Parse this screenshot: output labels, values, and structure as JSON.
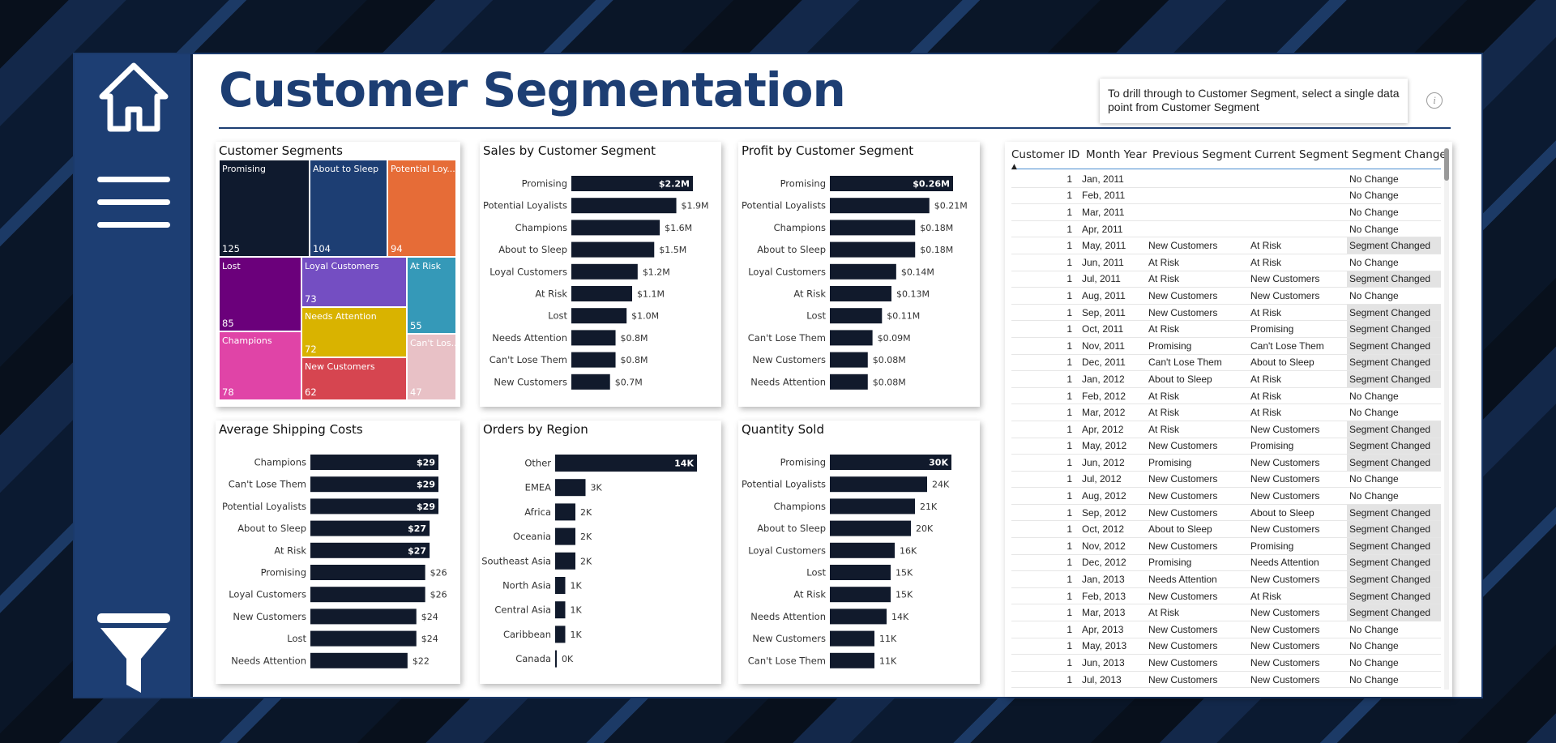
{
  "colors": {
    "sidebar": "#1d3e73",
    "title": "#1d3e73",
    "bar": "#111a2c",
    "tiles": {
      "Promising": "#0f1a2e",
      "About to Sleep": "#1d3e73",
      "Potential Loyalists": "#e66c37",
      "Lost": "#6b007b",
      "Loyal Customers": "#744ec2",
      "At Risk": "#3599b8",
      "Needs Attention": "#d9b300",
      "Champions": "#e044a7",
      "New Customers": "#d64550",
      "Can't Lose Them": "#e8c1c6"
    }
  },
  "sidebar": {
    "icons": [
      "home-icon",
      "menu-icon",
      "filter-icon"
    ]
  },
  "header": {
    "title": "Customer Segmentation",
    "tooltip": "To drill through to Customer Segment, select a single data point from Customer Segment",
    "info_icon": "i"
  },
  "treemap": {
    "title": "Customer Segments",
    "tiles": [
      {
        "label": "Promising",
        "value": "125"
      },
      {
        "label": "About to Sleep",
        "value": "104"
      },
      {
        "label": "Potential Loy...",
        "value": "94"
      },
      {
        "label": "Lost",
        "value": "85"
      },
      {
        "label": "Loyal Customers",
        "value": "73"
      },
      {
        "label": "At Risk",
        "value": "55"
      },
      {
        "label": "Needs Attention",
        "value": "72"
      },
      {
        "label": "Champions",
        "value": "78"
      },
      {
        "label": "New Customers",
        "value": "62"
      },
      {
        "label": "Can't Los...",
        "value": "47"
      }
    ]
  },
  "chart_data": [
    {
      "type": "bar",
      "id": "sales",
      "title": "Sales by Customer Segment",
      "categories": [
        "Promising",
        "Potential Loyalists",
        "Champions",
        "About to Sleep",
        "Loyal Customers",
        "At Risk",
        "Lost",
        "Needs Attention",
        "Can't Lose Them",
        "New Customers"
      ],
      "values": [
        2.2,
        1.9,
        1.6,
        1.5,
        1.2,
        1.1,
        1.0,
        0.8,
        0.8,
        0.7
      ],
      "labels": [
        "$2.2M",
        "$1.9M",
        "$1.6M",
        "$1.5M",
        "$1.2M",
        "$1.1M",
        "$1.0M",
        "$0.8M",
        "$0.8M",
        "$0.7M"
      ],
      "max": 2.2
    },
    {
      "type": "bar",
      "id": "profit",
      "title": "Profit by Customer Segment",
      "categories": [
        "Promising",
        "Potential Loyalists",
        "Champions",
        "About to Sleep",
        "Loyal Customers",
        "At Risk",
        "Lost",
        "Can't Lose Them",
        "New Customers",
        "Needs Attention"
      ],
      "values": [
        0.26,
        0.21,
        0.18,
        0.18,
        0.14,
        0.13,
        0.11,
        0.09,
        0.08,
        0.08
      ],
      "labels": [
        "$0.26M",
        "$0.21M",
        "$0.18M",
        "$0.18M",
        "$0.14M",
        "$0.13M",
        "$0.11M",
        "$0.09M",
        "$0.08M",
        "$0.08M"
      ],
      "max": 0.26
    },
    {
      "type": "bar",
      "id": "shipping",
      "title": "Average Shipping Costs",
      "categories": [
        "Champions",
        "Can't Lose Them",
        "Potential Loyalists",
        "About to Sleep",
        "At Risk",
        "Promising",
        "Loyal Customers",
        "New Customers",
        "Lost",
        "Needs Attention"
      ],
      "values": [
        29,
        29,
        29,
        27,
        27,
        26,
        26,
        24,
        24,
        22
      ],
      "labels": [
        "$29",
        "$29",
        "$29",
        "$27",
        "$27",
        "$26",
        "$26",
        "$24",
        "$24",
        "$22"
      ],
      "max": 29
    },
    {
      "type": "bar",
      "id": "orders",
      "title": "Orders by Region",
      "categories": [
        "Other",
        "EMEA",
        "Africa",
        "Oceania",
        "Southeast Asia",
        "North Asia",
        "Central Asia",
        "Caribbean",
        "Canada"
      ],
      "values": [
        14,
        3,
        2,
        2,
        2,
        1,
        1,
        1,
        0
      ],
      "labels": [
        "14K",
        "3K",
        "2K",
        "2K",
        "2K",
        "1K",
        "1K",
        "1K",
        "0K"
      ],
      "max": 14
    },
    {
      "type": "bar",
      "id": "quantity",
      "title": "Quantity Sold",
      "categories": [
        "Promising",
        "Potential Loyalists",
        "Champions",
        "About to Sleep",
        "Loyal Customers",
        "Lost",
        "At Risk",
        "Needs Attention",
        "New Customers",
        "Can't Lose Them"
      ],
      "values": [
        30,
        24,
        21,
        20,
        16,
        15,
        15,
        14,
        11,
        11
      ],
      "labels": [
        "30K",
        "24K",
        "21K",
        "20K",
        "16K",
        "15K",
        "15K",
        "14K",
        "11K",
        "11K"
      ],
      "max": 30
    }
  ],
  "table": {
    "columns": [
      "Customer ID",
      "Month Year",
      "Previous Segment",
      "Current Segment",
      "Segment Change"
    ],
    "rows": [
      [
        "1",
        "Jan, 2011",
        "",
        "",
        "No Change"
      ],
      [
        "1",
        "Feb, 2011",
        "",
        "",
        "No Change"
      ],
      [
        "1",
        "Mar, 2011",
        "",
        "",
        "No Change"
      ],
      [
        "1",
        "Apr, 2011",
        "",
        "",
        "No Change"
      ],
      [
        "1",
        "May, 2011",
        "New Customers",
        "At Risk",
        "Segment Changed"
      ],
      [
        "1",
        "Jun, 2011",
        "At Risk",
        "At Risk",
        "No Change"
      ],
      [
        "1",
        "Jul, 2011",
        "At Risk",
        "New Customers",
        "Segment Changed"
      ],
      [
        "1",
        "Aug, 2011",
        "New Customers",
        "New Customers",
        "No Change"
      ],
      [
        "1",
        "Sep, 2011",
        "New Customers",
        "At Risk",
        "Segment Changed"
      ],
      [
        "1",
        "Oct, 2011",
        "At Risk",
        "Promising",
        "Segment Changed"
      ],
      [
        "1",
        "Nov, 2011",
        "Promising",
        "Can't Lose Them",
        "Segment Changed"
      ],
      [
        "1",
        "Dec, 2011",
        "Can't Lose Them",
        "About to Sleep",
        "Segment Changed"
      ],
      [
        "1",
        "Jan, 2012",
        "About to Sleep",
        "At Risk",
        "Segment Changed"
      ],
      [
        "1",
        "Feb, 2012",
        "At Risk",
        "At Risk",
        "No Change"
      ],
      [
        "1",
        "Mar, 2012",
        "At Risk",
        "At Risk",
        "No Change"
      ],
      [
        "1",
        "Apr, 2012",
        "At Risk",
        "New Customers",
        "Segment Changed"
      ],
      [
        "1",
        "May, 2012",
        "New Customers",
        "Promising",
        "Segment Changed"
      ],
      [
        "1",
        "Jun, 2012",
        "Promising",
        "New Customers",
        "Segment Changed"
      ],
      [
        "1",
        "Jul, 2012",
        "New Customers",
        "New Customers",
        "No Change"
      ],
      [
        "1",
        "Aug, 2012",
        "New Customers",
        "New Customers",
        "No Change"
      ],
      [
        "1",
        "Sep, 2012",
        "New Customers",
        "About to Sleep",
        "Segment Changed"
      ],
      [
        "1",
        "Oct, 2012",
        "About to Sleep",
        "New Customers",
        "Segment Changed"
      ],
      [
        "1",
        "Nov, 2012",
        "New Customers",
        "Promising",
        "Segment Changed"
      ],
      [
        "1",
        "Dec, 2012",
        "Promising",
        "Needs Attention",
        "Segment Changed"
      ],
      [
        "1",
        "Jan, 2013",
        "Needs Attention",
        "New Customers",
        "Segment Changed"
      ],
      [
        "1",
        "Feb, 2013",
        "New Customers",
        "At Risk",
        "Segment Changed"
      ],
      [
        "1",
        "Mar, 2013",
        "At Risk",
        "New Customers",
        "Segment Changed"
      ],
      [
        "1",
        "Apr, 2013",
        "New Customers",
        "New Customers",
        "No Change"
      ],
      [
        "1",
        "May, 2013",
        "New Customers",
        "New Customers",
        "No Change"
      ],
      [
        "1",
        "Jun, 2013",
        "New Customers",
        "New Customers",
        "No Change"
      ],
      [
        "1",
        "Jul, 2013",
        "New Customers",
        "New Customers",
        "No Change"
      ]
    ]
  }
}
